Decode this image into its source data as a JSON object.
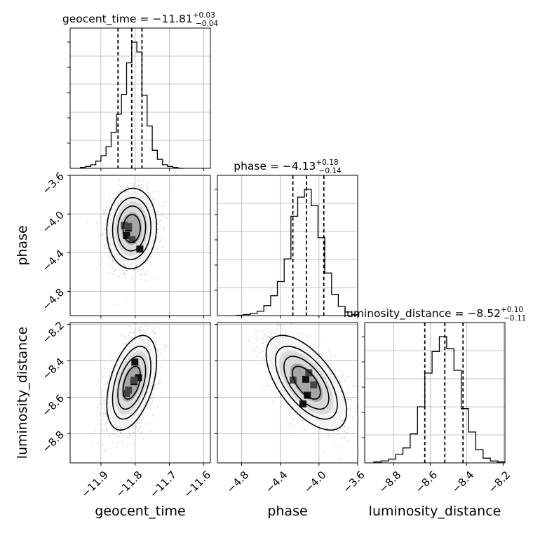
{
  "chart_data": {
    "type": "corner",
    "parameters": [
      "geocent_time",
      "phase",
      "luminosity_distance"
    ],
    "titles": [
      {
        "param": "geocent_time",
        "prefix": "geocent_time = ",
        "median": "−11.81",
        "plus": "+0.03",
        "minus": "−0.04"
      },
      {
        "param": "phase",
        "prefix": "phase = ",
        "median": "−4.13",
        "plus": "+0.18",
        "minus": "−0.14"
      },
      {
        "param": "luminosity_distance",
        "prefix": "luminosity_distance = ",
        "median": "−8.52",
        "plus": "+0.10",
        "minus": "−0.11"
      }
    ],
    "axis_labels": {
      "x": [
        "geocent_time",
        "phase",
        "luminosity_distance"
      ],
      "y": [
        "phase",
        "luminosity_distance"
      ]
    },
    "ranges": {
      "geocent_time": [
        -11.99,
        -11.58
      ],
      "phase": [
        -5.05,
        -3.6
      ],
      "luminosity_distance": [
        -8.96,
        -8.19
      ]
    },
    "ticks": {
      "geocent_time": [
        {
          "value": -11.9,
          "label": "−11.9"
        },
        {
          "value": -11.8,
          "label": "−11.8"
        },
        {
          "value": -11.7,
          "label": "−11.7"
        },
        {
          "value": -11.6,
          "label": "−11.6"
        }
      ],
      "phase": [
        {
          "value": -4.8,
          "label": "−4.8"
        },
        {
          "value": -4.4,
          "label": "−4.4"
        },
        {
          "value": -4.0,
          "label": "−4.0"
        },
        {
          "value": -3.6,
          "label": "−3.6"
        }
      ],
      "luminosity_distance": [
        {
          "value": -8.8,
          "label": "−8.8"
        },
        {
          "value": -8.6,
          "label": "−8.6"
        },
        {
          "value": -8.4,
          "label": "−8.4"
        },
        {
          "value": -8.2,
          "label": "−8.2"
        }
      ]
    },
    "quantiles": {
      "geocent_time": [
        -11.85,
        -11.81,
        -11.78
      ],
      "phase": [
        -4.27,
        -4.13,
        -3.95
      ],
      "luminosity_distance": [
        -8.63,
        -8.52,
        -8.42
      ]
    },
    "histograms": {
      "geocent_time": {
        "edges": [
          -11.96,
          -11.945,
          -11.93,
          -11.915,
          -11.9,
          -11.885,
          -11.87,
          -11.855,
          -11.84,
          -11.825,
          -11.81,
          -11.795,
          -11.78,
          -11.765,
          -11.75,
          -11.735,
          -11.72,
          -11.705,
          -11.69,
          -11.675,
          -11.66
        ],
        "counts": [
          1,
          2,
          4,
          8,
          14,
          24,
          40,
          60,
          82,
          117,
          140,
          129,
          81,
          47,
          20,
          10,
          4,
          2,
          1,
          0
        ]
      },
      "phase": {
        "edges": [
          -4.85,
          -4.78,
          -4.71,
          -4.64,
          -4.57,
          -4.5,
          -4.43,
          -4.36,
          -4.29,
          -4.22,
          -4.15,
          -4.08,
          -4.01,
          -3.94,
          -3.87,
          -3.8,
          -3.73,
          -3.66,
          -3.59
        ],
        "counts": [
          0.5,
          1.5,
          3,
          6,
          14,
          28,
          48,
          80,
          140,
          167,
          178,
          155,
          110,
          60,
          30,
          13,
          5,
          1.5
        ]
      },
      "luminosity_distance": {
        "edges": [
          -8.91,
          -8.87,
          -8.83,
          -8.79,
          -8.75,
          -8.71,
          -8.67,
          -8.63,
          -8.59,
          -8.55,
          -8.51,
          -8.47,
          -8.43,
          -8.39,
          -8.35,
          -8.31,
          -8.27,
          -8.23,
          -8.19
        ],
        "counts": [
          1,
          2,
          4,
          9,
          16,
          31,
          60,
          96,
          119,
          135,
          122,
          99,
          58,
          33,
          14,
          5,
          2,
          1
        ]
      }
    },
    "joint": [
      {
        "x": "geocent_time",
        "y": "phase",
        "mean": [
          -11.81,
          -4.15
        ],
        "sd": [
          0.028,
          0.16
        ],
        "rho": 0.05,
        "n": 2400
      },
      {
        "x": "geocent_time",
        "y": "luminosity_distance",
        "mean": [
          -11.81,
          -8.52
        ],
        "sd": [
          0.028,
          0.1
        ],
        "rho": 0.45,
        "n": 2400
      },
      {
        "x": "phase",
        "y": "luminosity_distance",
        "mean": [
          -4.13,
          -8.52
        ],
        "sd": [
          0.16,
          0.1
        ],
        "rho": -0.6,
        "n": 2400
      }
    ],
    "grid": true
  }
}
